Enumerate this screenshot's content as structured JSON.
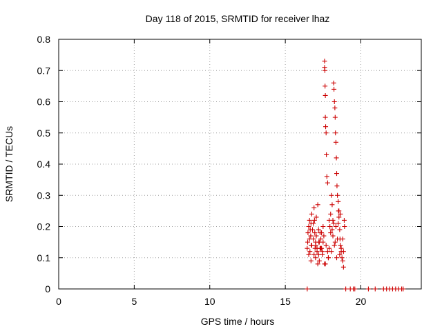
{
  "chart_data": {
    "type": "scatter",
    "title": "Day 118 of 2015, SRMTID for receiver lhaz",
    "xlabel": "GPS time / hours",
    "ylabel": "SRMTID / TECUs",
    "xlim": [
      0,
      24
    ],
    "ylim": [
      0,
      0.8
    ],
    "xticks": [
      0,
      5,
      10,
      15,
      20
    ],
    "xtick_labels": [
      "0",
      "5",
      "10",
      "15",
      "20"
    ],
    "yticks": [
      0,
      0.1,
      0.2,
      0.3,
      0.4,
      0.5,
      0.6,
      0.7,
      0.8
    ],
    "ytick_labels": [
      "0",
      "0.1",
      "0.2",
      "0.3",
      "0.4",
      "0.5",
      "0.6",
      "0.7",
      "0.8"
    ],
    "grid": true,
    "marker": "plus",
    "color": "#cc0000",
    "series": [
      {
        "name": "SRMTID",
        "x": [
          16.45,
          16.48,
          16.5,
          16.55,
          16.6,
          16.63,
          16.68,
          16.7,
          16.72,
          16.75,
          16.8,
          16.85,
          16.9,
          16.93,
          16.97,
          17.0,
          17.02,
          17.05,
          17.1,
          17.15,
          17.2,
          17.22,
          17.25,
          17.3,
          17.35,
          17.4,
          17.45,
          17.5,
          17.55,
          17.6,
          17.6,
          17.62,
          17.63,
          17.65,
          17.65,
          17.67,
          17.7,
          17.72,
          17.75,
          17.8,
          17.85,
          17.9,
          17.95,
          18.0,
          18.05,
          18.1,
          18.15,
          18.2,
          18.22,
          18.25,
          18.28,
          18.3,
          18.32,
          18.35,
          18.38,
          18.4,
          18.42,
          18.45,
          18.5,
          18.52,
          18.55,
          18.6,
          18.62,
          18.65,
          18.7,
          18.75,
          18.8,
          18.85,
          18.9,
          18.92,
          16.55,
          16.75,
          16.95,
          17.05,
          17.25,
          17.45,
          17.65,
          17.85,
          18.05,
          18.25,
          18.45,
          18.65,
          18.85,
          17.15,
          16.85,
          16.65,
          17.35,
          18.15,
          18.35,
          18.55,
          16.6,
          16.9,
          17.1,
          17.3,
          17.5,
          17.7,
          17.9,
          18.1,
          18.3,
          18.5,
          18.7,
          16.7,
          17.0,
          17.2,
          17.4,
          17.6,
          17.8,
          18.0,
          18.2,
          18.4,
          18.6,
          18.8,
          16.45,
          19.0,
          19.3,
          19.5,
          19.6,
          20.5,
          20.95,
          21.5,
          21.7,
          21.9,
          22.1,
          22.3,
          22.5,
          22.7,
          22.8
        ],
        "y": [
          0.13,
          0.15,
          0.18,
          0.2,
          0.22,
          0.12,
          0.17,
          0.21,
          0.14,
          0.24,
          0.19,
          0.16,
          0.26,
          0.22,
          0.13,
          0.1,
          0.14,
          0.17,
          0.12,
          0.08,
          0.11,
          0.15,
          0.09,
          0.13,
          0.16,
          0.18,
          0.12,
          0.2,
          0.17,
          0.73,
          0.71,
          0.7,
          0.65,
          0.62,
          0.55,
          0.52,
          0.5,
          0.43,
          0.36,
          0.34,
          0.1,
          0.13,
          0.2,
          0.24,
          0.3,
          0.27,
          0.22,
          0.66,
          0.64,
          0.6,
          0.58,
          0.55,
          0.5,
          0.47,
          0.42,
          0.37,
          0.33,
          0.3,
          0.28,
          0.25,
          0.23,
          0.19,
          0.16,
          0.14,
          0.12,
          0.1,
          0.09,
          0.07,
          0.22,
          0.2,
          0.11,
          0.14,
          0.18,
          0.23,
          0.15,
          0.11,
          0.08,
          0.1,
          0.12,
          0.14,
          0.16,
          0.24,
          0.12,
          0.27,
          0.21,
          0.19,
          0.13,
          0.17,
          0.2,
          0.25,
          0.16,
          0.11,
          0.13,
          0.18,
          0.15,
          0.14,
          0.22,
          0.19,
          0.15,
          0.21,
          0.13,
          0.09,
          0.15,
          0.19,
          0.13,
          0.08,
          0.12,
          0.18,
          0.21,
          0.1,
          0.11,
          0.16,
          0,
          0,
          0,
          0,
          0,
          0,
          0,
          0,
          0,
          0,
          0,
          0,
          0,
          0,
          0
        ]
      }
    ]
  }
}
